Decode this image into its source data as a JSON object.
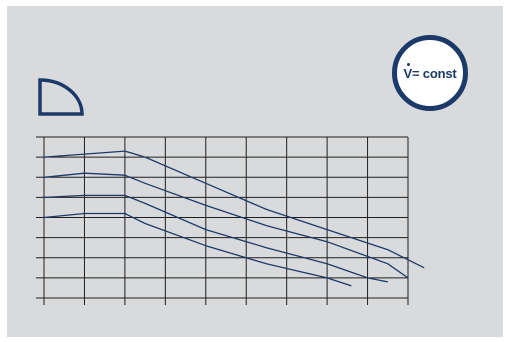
{
  "badge": {
    "symbol": "V̇",
    "text": "= const",
    "border_color": "#1c3a69"
  },
  "mode_icon": {
    "name": "quarter-circle-curve-icon",
    "color": "#1c3a69"
  },
  "colors": {
    "panel_background": "#d9dadc",
    "grid": "#1e1e1e",
    "curves": "#1c3a69"
  },
  "chart_data": {
    "type": "line",
    "title": "",
    "xlabel": "",
    "ylabel": "",
    "xlim": [
      0,
      9
    ],
    "ylim": [
      0,
      8
    ],
    "grid": true,
    "x_ticks": 9,
    "y_ticks": 8,
    "series": [
      {
        "x": [
          0,
          2.0,
          2.5,
          4.0,
          5.5,
          7.0,
          8.5,
          9.4
        ],
        "y": [
          7.0,
          7.3,
          7.0,
          5.7,
          4.4,
          3.4,
          2.4,
          1.5
        ]
      },
      {
        "x": [
          0,
          1.0,
          2.0,
          2.5,
          4.0,
          5.5,
          7.0,
          8.5,
          9.0
        ],
        "y": [
          6.0,
          6.2,
          6.1,
          5.7,
          4.6,
          3.6,
          2.8,
          1.7,
          1.0
        ]
      },
      {
        "x": [
          0,
          1.0,
          2.0,
          2.5,
          4.0,
          5.5,
          7.0,
          8.0,
          8.5
        ],
        "y": [
          5.0,
          5.1,
          5.1,
          4.7,
          3.4,
          2.5,
          1.7,
          1.0,
          0.8
        ]
      },
      {
        "x": [
          0,
          1.0,
          2.0,
          2.5,
          4.0,
          5.5,
          7.0,
          7.6
        ],
        "y": [
          4.0,
          4.2,
          4.2,
          3.7,
          2.6,
          1.7,
          1.0,
          0.6
        ]
      }
    ]
  }
}
